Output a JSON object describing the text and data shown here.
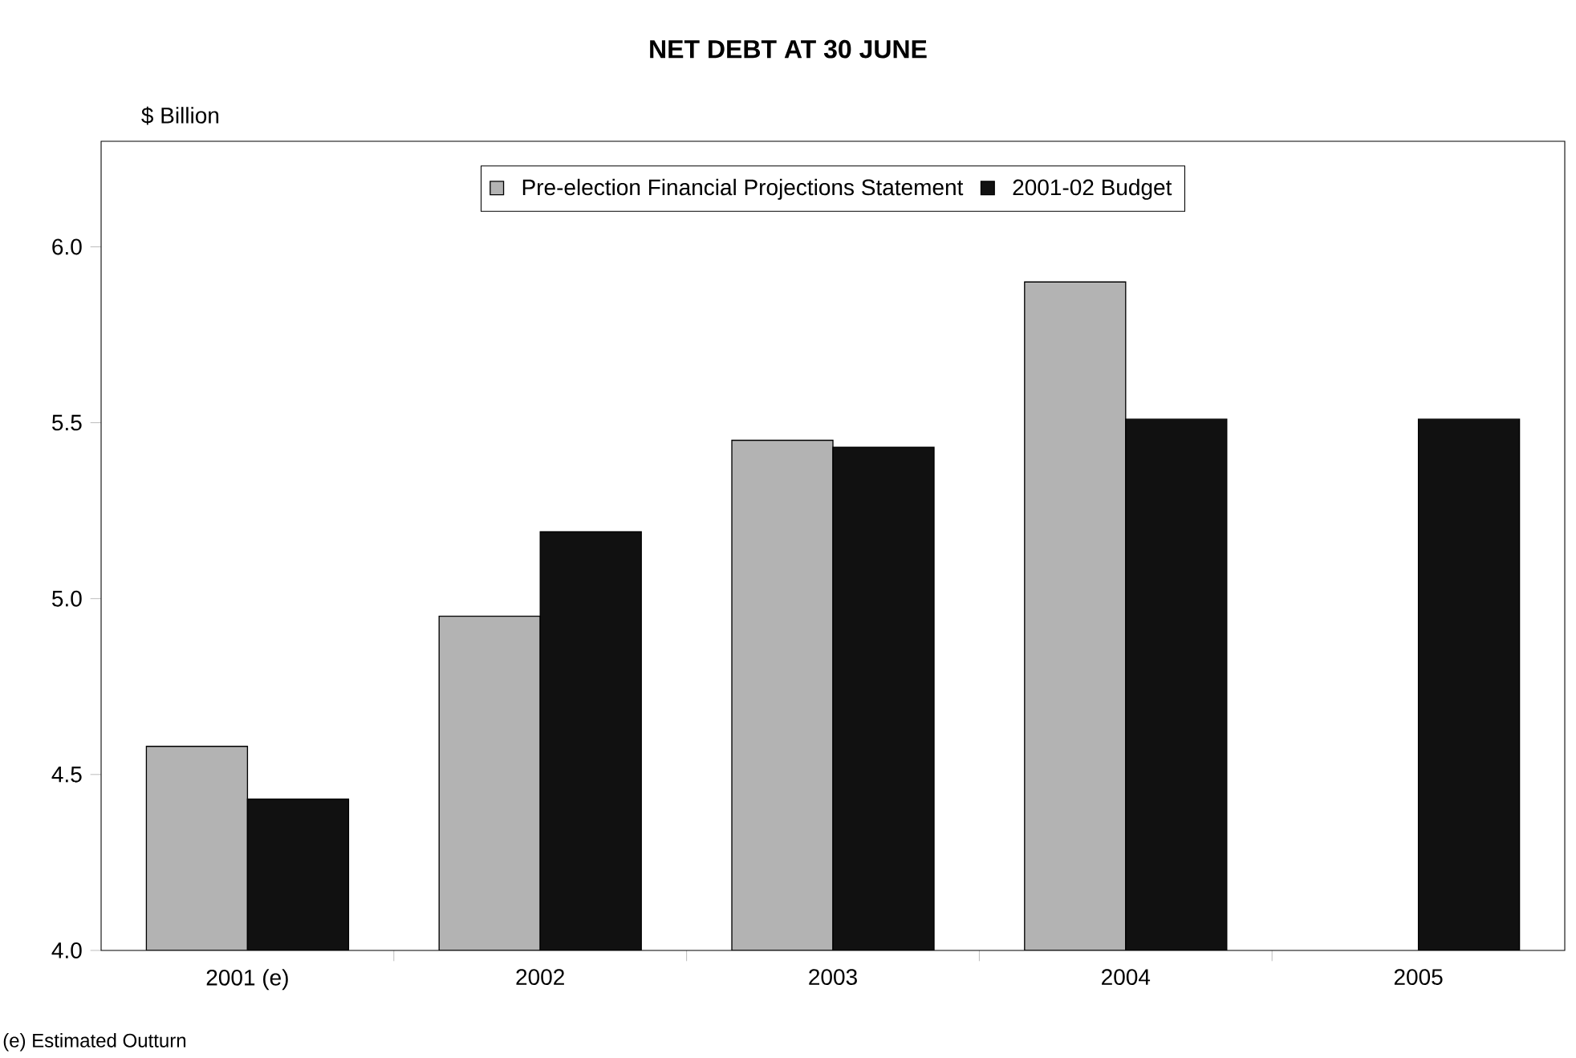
{
  "chart_data": {
    "type": "bar",
    "title": "NET DEBT AT 30 JUNE",
    "ylabel": "$ Billion",
    "categories": [
      "2001 (e)",
      "2002",
      "2003",
      "2004",
      "2005"
    ],
    "series": [
      {
        "name": "Pre-election Financial Projections Statement",
        "color": "#b3b3b3",
        "values": [
          4.58,
          4.95,
          5.45,
          5.9,
          null
        ]
      },
      {
        "name": "2001-02 Budget",
        "color": "#111111",
        "values": [
          4.43,
          5.19,
          5.43,
          5.51,
          5.51
        ]
      }
    ],
    "ylim": [
      4,
      6.3
    ],
    "yticks": [
      {
        "value": 4,
        "label": "4.0"
      },
      {
        "value": 4.5,
        "label": "4.5"
      },
      {
        "value": 5,
        "label": "5.0"
      },
      {
        "value": 5.5,
        "label": "5.5"
      },
      {
        "value": 6,
        "label": "6.0"
      }
    ],
    "grid": false,
    "legend": "top",
    "annotations": [
      "(e) Estimated Outturn"
    ]
  }
}
